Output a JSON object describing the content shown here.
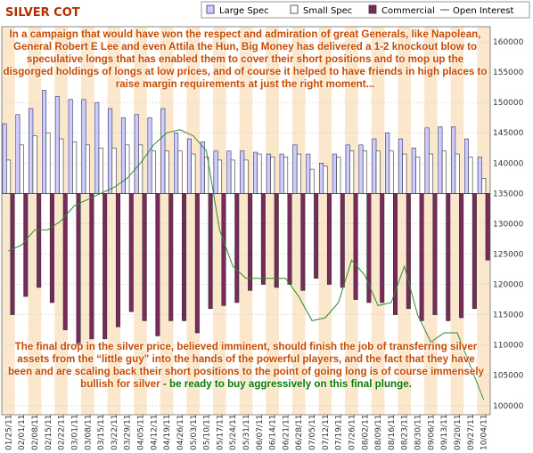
{
  "chart_data": {
    "type": "bar",
    "title": "SILVER COT",
    "legend": {
      "placement": "top-right",
      "items": [
        {
          "label": "Large Spec",
          "color": "#ccccff",
          "stroke": "#333366",
          "kind": "box"
        },
        {
          "label": "Small Spec",
          "color": "#ffffff",
          "stroke": "#333333",
          "kind": "box"
        },
        {
          "label": "Commercial",
          "color": "#7a2a5a",
          "stroke": "#333333",
          "kind": "box"
        },
        {
          "label": "Open Interest",
          "color": "#2d8a2d",
          "kind": "line"
        }
      ]
    },
    "y_axis": {
      "side": "right",
      "min": 100000,
      "max": 160000,
      "ticks": [
        "100000",
        "105000",
        "110000",
        "115000",
        "120000",
        "125000",
        "130000",
        "135000",
        "140000",
        "145000",
        "150000",
        "155000",
        "160000"
      ]
    },
    "x_labels": [
      "01/25/11",
      "02/01/11",
      "02/08/11",
      "02/15/11",
      "02/22/11",
      "03/01/11",
      "03/08/11",
      "03/15/11",
      "03/22/11",
      "03/29/11",
      "04/05/11",
      "04/12/11",
      "04/19/11",
      "04/26/11",
      "05/03/11",
      "05/10/11",
      "05/17/11",
      "05/24/11",
      "05/31/11",
      "06/07/11",
      "06/14/11",
      "06/21/11",
      "06/28/11",
      "07/05/11",
      "07/12/11",
      "07/19/11",
      "07/26/11",
      "08/02/11",
      "08/09/11",
      "08/16/11",
      "08/23/11",
      "08/30/11",
      "09/06/11",
      "09/13/11",
      "09/20/11",
      "09/27/11",
      "10/04/11"
    ],
    "series": [
      {
        "name": "Large Spec",
        "values": [
          146.5,
          148,
          149,
          152,
          151,
          150.5,
          150.5,
          150,
          149,
          147.5,
          148,
          147.5,
          149,
          145,
          144,
          143.5,
          142,
          142,
          142,
          141.8,
          141.5,
          141.5,
          143,
          141.5,
          140,
          141.5,
          143,
          143,
          144,
          145,
          144,
          142.5,
          145.8,
          146,
          146,
          144,
          141
        ]
      },
      {
        "name": "Small Spec",
        "values": [
          140.5,
          143,
          144.5,
          145,
          144,
          143.5,
          143,
          142.5,
          142.5,
          143,
          143,
          142,
          142,
          142,
          141.5,
          141,
          140.5,
          140.5,
          140.5,
          141.5,
          141,
          141,
          141.5,
          139,
          139.5,
          141,
          142,
          142,
          142,
          142,
          141.5,
          141,
          141.5,
          142,
          141.5,
          141,
          137.5
        ]
      },
      {
        "name": "Commercial",
        "values": [
          115,
          118,
          119.5,
          117,
          112.5,
          110,
          111,
          111,
          113,
          115.5,
          114,
          111.5,
          114,
          114,
          112,
          116,
          116.5,
          117,
          119,
          120,
          119.5,
          120,
          119,
          121,
          120,
          119.5,
          117.5,
          117,
          117,
          115,
          116,
          114,
          115,
          114,
          114.5,
          116,
          124
        ]
      },
      {
        "name": "Open Interest",
        "values": [
          125.5,
          126.5,
          129,
          129,
          130.5,
          133,
          134,
          135,
          136,
          137.5,
          140,
          143,
          145,
          145.5,
          144.5,
          142,
          129,
          123,
          121,
          121,
          121,
          121,
          118,
          114,
          114.5,
          117,
          124,
          121.5,
          116.5,
          117,
          123,
          115,
          110.5,
          112,
          112,
          106.5,
          101
        ]
      }
    ]
  },
  "notes": {
    "top": "In a campaign that would have won the respect and admiration of great Generals, like Napolean, General Robert E Lee and even Attila the Hun, Big Money has delivered a 1-2 knockout blow to speculative longs that has enabled them to cover their short positions and to mop up the disgorged holdings of longs at low prices, and of course it helped to have friends in high places to raise margin requirements at just the right moment...",
    "bottom_main": "The final drop in the silver price, believed imminent, should finish the job of transferring silver assets from the “little guy” into the hands of the powerful players, and the fact that they have been and are scaling back their short positions to the point of going long is of course immensely bullish for silver",
    "bottom_highlight": " - be ready to buy aggressively on this final plunge."
  }
}
